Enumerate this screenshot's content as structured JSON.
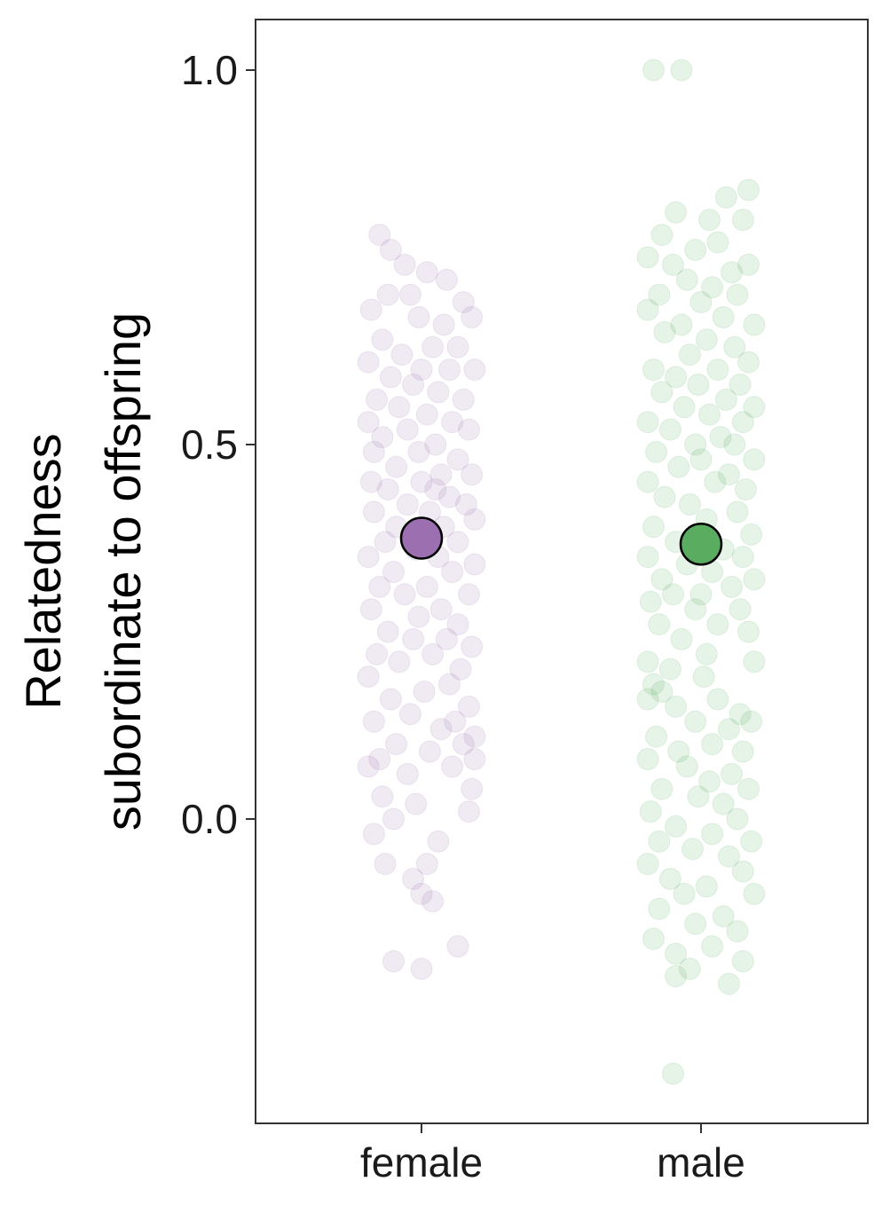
{
  "chart_data": {
    "type": "scatter",
    "subtype": "jitter-strip-with-mean",
    "ylabel_lines": [
      "Relatedness",
      "subordinate to offspring"
    ],
    "xlabel": "",
    "categories": [
      "female",
      "male"
    ],
    "yticks": [
      0.0,
      0.5,
      1.0
    ],
    "ytick_labels": [
      "0.0",
      "0.5",
      "1.0"
    ],
    "ylim": [
      -0.4,
      1.07
    ],
    "grid": false,
    "legend": "none",
    "point_alpha": 0.15,
    "series": [
      {
        "category": "female",
        "color": "#9c6fb0",
        "mean": 0.375,
        "points": [
          {
            "x": -0.15,
            "y": 0.78
          },
          {
            "x": -0.11,
            "y": 0.76
          },
          {
            "x": -0.06,
            "y": 0.74
          },
          {
            "x": 0.02,
            "y": 0.73
          },
          {
            "x": 0.09,
            "y": 0.72
          },
          {
            "x": -0.04,
            "y": 0.7
          },
          {
            "x": -0.12,
            "y": 0.7
          },
          {
            "x": 0.15,
            "y": 0.69
          },
          {
            "x": -0.18,
            "y": 0.68
          },
          {
            "x": -0.01,
            "y": 0.67
          },
          {
            "x": 0.08,
            "y": 0.66
          },
          {
            "x": 0.18,
            "y": 0.67
          },
          {
            "x": -0.14,
            "y": 0.64
          },
          {
            "x": 0.04,
            "y": 0.63
          },
          {
            "x": 0.13,
            "y": 0.63
          },
          {
            "x": -0.07,
            "y": 0.62
          },
          {
            "x": -0.19,
            "y": 0.61
          },
          {
            "x": 0.0,
            "y": 0.6
          },
          {
            "x": 0.1,
            "y": 0.6
          },
          {
            "x": 0.19,
            "y": 0.6
          },
          {
            "x": -0.11,
            "y": 0.59
          },
          {
            "x": -0.03,
            "y": 0.58
          },
          {
            "x": 0.06,
            "y": 0.57
          },
          {
            "x": -0.16,
            "y": 0.56
          },
          {
            "x": 0.15,
            "y": 0.56
          },
          {
            "x": -0.08,
            "y": 0.55
          },
          {
            "x": 0.02,
            "y": 0.54
          },
          {
            "x": -0.19,
            "y": 0.53
          },
          {
            "x": 0.11,
            "y": 0.53
          },
          {
            "x": -0.05,
            "y": 0.52
          },
          {
            "x": 0.17,
            "y": 0.52
          },
          {
            "x": -0.14,
            "y": 0.51
          },
          {
            "x": 0.05,
            "y": 0.5
          },
          {
            "x": -0.01,
            "y": 0.49
          },
          {
            "x": -0.17,
            "y": 0.49
          },
          {
            "x": 0.13,
            "y": 0.48
          },
          {
            "x": -0.09,
            "y": 0.47
          },
          {
            "x": 0.07,
            "y": 0.46
          },
          {
            "x": 0.18,
            "y": 0.46
          },
          {
            "x": -0.18,
            "y": 0.45
          },
          {
            "x": 0.0,
            "y": 0.45
          },
          {
            "x": 0.05,
            "y": 0.44
          },
          {
            "x": -0.12,
            "y": 0.44
          },
          {
            "x": 0.1,
            "y": 0.43
          },
          {
            "x": -0.05,
            "y": 0.42
          },
          {
            "x": 0.16,
            "y": 0.42
          },
          {
            "x": -0.17,
            "y": 0.41
          },
          {
            "x": 0.03,
            "y": 0.41
          },
          {
            "x": 0.19,
            "y": 0.4
          },
          {
            "x": -0.09,
            "y": 0.39
          },
          {
            "x": 0.08,
            "y": 0.39
          },
          {
            "x": -0.13,
            "y": 0.37
          },
          {
            "x": 0.13,
            "y": 0.37
          },
          {
            "x": -0.02,
            "y": 0.36
          },
          {
            "x": -0.19,
            "y": 0.35
          },
          {
            "x": 0.06,
            "y": 0.35
          },
          {
            "x": 0.19,
            "y": 0.34
          },
          {
            "x": -0.1,
            "y": 0.33
          },
          {
            "x": 0.11,
            "y": 0.33
          },
          {
            "x": -0.15,
            "y": 0.31
          },
          {
            "x": 0.02,
            "y": 0.31
          },
          {
            "x": -0.06,
            "y": 0.3
          },
          {
            "x": 0.17,
            "y": 0.3
          },
          {
            "x": -0.18,
            "y": 0.28
          },
          {
            "x": 0.07,
            "y": 0.28
          },
          {
            "x": -0.01,
            "y": 0.27
          },
          {
            "x": 0.13,
            "y": 0.26
          },
          {
            "x": -0.12,
            "y": 0.25
          },
          {
            "x": -0.03,
            "y": 0.24
          },
          {
            "x": 0.09,
            "y": 0.24
          },
          {
            "x": 0.18,
            "y": 0.23
          },
          {
            "x": -0.16,
            "y": 0.22
          },
          {
            "x": 0.04,
            "y": 0.22
          },
          {
            "x": -0.08,
            "y": 0.21
          },
          {
            "x": 0.14,
            "y": 0.2
          },
          {
            "x": -0.19,
            "y": 0.19
          },
          {
            "x": 0.1,
            "y": 0.18
          },
          {
            "x": 0.01,
            "y": 0.17
          },
          {
            "x": -0.11,
            "y": 0.16
          },
          {
            "x": 0.17,
            "y": 0.15
          },
          {
            "x": -0.04,
            "y": 0.14
          },
          {
            "x": 0.12,
            "y": 0.13
          },
          {
            "x": -0.17,
            "y": 0.13
          },
          {
            "x": 0.07,
            "y": 0.12
          },
          {
            "x": 0.19,
            "y": 0.11
          },
          {
            "x": -0.09,
            "y": 0.1
          },
          {
            "x": 0.15,
            "y": 0.1
          },
          {
            "x": 0.03,
            "y": 0.09
          },
          {
            "x": -0.15,
            "y": 0.08
          },
          {
            "x": 0.19,
            "y": 0.08
          },
          {
            "x": -0.19,
            "y": 0.07
          },
          {
            "x": 0.11,
            "y": 0.07
          },
          {
            "x": -0.05,
            "y": 0.06
          },
          {
            "x": 0.18,
            "y": 0.04
          },
          {
            "x": -0.14,
            "y": 0.03
          },
          {
            "x": -0.02,
            "y": 0.02
          },
          {
            "x": 0.17,
            "y": 0.01
          },
          {
            "x": -0.1,
            "y": 0.0
          },
          {
            "x": -0.17,
            "y": -0.02
          },
          {
            "x": 0.06,
            "y": -0.03
          },
          {
            "x": 0.02,
            "y": -0.06
          },
          {
            "x": -0.13,
            "y": -0.06
          },
          {
            "x": -0.03,
            "y": -0.08
          },
          {
            "x": 0.0,
            "y": -0.1
          },
          {
            "x": 0.04,
            "y": -0.11
          },
          {
            "x": 0.13,
            "y": -0.17
          },
          {
            "x": -0.1,
            "y": -0.19
          },
          {
            "x": 0.0,
            "y": -0.2
          }
        ]
      },
      {
        "category": "male",
        "color": "#5aad60",
        "mean": 0.367,
        "points": [
          {
            "x": -0.17,
            "y": 1.0
          },
          {
            "x": -0.07,
            "y": 1.0
          },
          {
            "x": 0.17,
            "y": 0.84
          },
          {
            "x": 0.09,
            "y": 0.83
          },
          {
            "x": -0.09,
            "y": 0.81
          },
          {
            "x": 0.03,
            "y": 0.8
          },
          {
            "x": 0.15,
            "y": 0.8
          },
          {
            "x": -0.14,
            "y": 0.78
          },
          {
            "x": 0.06,
            "y": 0.77
          },
          {
            "x": -0.02,
            "y": 0.76
          },
          {
            "x": -0.19,
            "y": 0.75
          },
          {
            "x": 0.17,
            "y": 0.74
          },
          {
            "x": -0.1,
            "y": 0.74
          },
          {
            "x": 0.11,
            "y": 0.73
          },
          {
            "x": -0.05,
            "y": 0.72
          },
          {
            "x": 0.04,
            "y": 0.71
          },
          {
            "x": -0.15,
            "y": 0.7
          },
          {
            "x": 0.13,
            "y": 0.7
          },
          {
            "x": 0.0,
            "y": 0.69
          },
          {
            "x": -0.19,
            "y": 0.68
          },
          {
            "x": 0.08,
            "y": 0.67
          },
          {
            "x": -0.07,
            "y": 0.66
          },
          {
            "x": 0.19,
            "y": 0.66
          },
          {
            "x": -0.13,
            "y": 0.65
          },
          {
            "x": 0.02,
            "y": 0.64
          },
          {
            "x": 0.12,
            "y": 0.63
          },
          {
            "x": -0.04,
            "y": 0.62
          },
          {
            "x": 0.17,
            "y": 0.61
          },
          {
            "x": -0.17,
            "y": 0.6
          },
          {
            "x": 0.06,
            "y": 0.6
          },
          {
            "x": -0.09,
            "y": 0.59
          },
          {
            "x": 0.14,
            "y": 0.58
          },
          {
            "x": -0.01,
            "y": 0.58
          },
          {
            "x": -0.14,
            "y": 0.57
          },
          {
            "x": 0.09,
            "y": 0.56
          },
          {
            "x": 0.19,
            "y": 0.55
          },
          {
            "x": -0.06,
            "y": 0.55
          },
          {
            "x": 0.03,
            "y": 0.54
          },
          {
            "x": -0.19,
            "y": 0.53
          },
          {
            "x": 0.15,
            "y": 0.53
          },
          {
            "x": -0.11,
            "y": 0.52
          },
          {
            "x": 0.07,
            "y": 0.51
          },
          {
            "x": -0.02,
            "y": 0.5
          },
          {
            "x": 0.12,
            "y": 0.5
          },
          {
            "x": -0.16,
            "y": 0.49
          },
          {
            "x": 0.19,
            "y": 0.48
          },
          {
            "x": 0.0,
            "y": 0.48
          },
          {
            "x": -0.08,
            "y": 0.47
          },
          {
            "x": 0.1,
            "y": 0.46
          },
          {
            "x": -0.19,
            "y": 0.45
          },
          {
            "x": 0.05,
            "y": 0.45
          },
          {
            "x": 0.16,
            "y": 0.44
          },
          {
            "x": -0.13,
            "y": 0.43
          },
          {
            "x": -0.04,
            "y": 0.42
          },
          {
            "x": 0.13,
            "y": 0.41
          },
          {
            "x": 0.02,
            "y": 0.4
          },
          {
            "x": -0.17,
            "y": 0.39
          },
          {
            "x": 0.18,
            "y": 0.38
          },
          {
            "x": -0.09,
            "y": 0.37
          },
          {
            "x": 0.08,
            "y": 0.36
          },
          {
            "x": -0.19,
            "y": 0.35
          },
          {
            "x": 0.15,
            "y": 0.35
          },
          {
            "x": -0.05,
            "y": 0.34
          },
          {
            "x": 0.04,
            "y": 0.33
          },
          {
            "x": -0.14,
            "y": 0.32
          },
          {
            "x": 0.19,
            "y": 0.32
          },
          {
            "x": 0.11,
            "y": 0.31
          },
          {
            "x": -0.1,
            "y": 0.3
          },
          {
            "x": 0.0,
            "y": 0.3
          },
          {
            "x": -0.18,
            "y": 0.29
          },
          {
            "x": 0.14,
            "y": 0.28
          },
          {
            "x": -0.02,
            "y": 0.28
          },
          {
            "x": 0.06,
            "y": 0.26
          },
          {
            "x": -0.15,
            "y": 0.26
          },
          {
            "x": 0.17,
            "y": 0.25
          },
          {
            "x": -0.07,
            "y": 0.24
          },
          {
            "x": 0.02,
            "y": 0.22
          },
          {
            "x": -0.19,
            "y": 0.21
          },
          {
            "x": 0.19,
            "y": 0.21
          },
          {
            "x": -0.11,
            "y": 0.2
          },
          {
            "x": 0.01,
            "y": 0.19
          },
          {
            "x": -0.17,
            "y": 0.18
          },
          {
            "x": -0.14,
            "y": 0.17
          },
          {
            "x": -0.19,
            "y": 0.16
          },
          {
            "x": 0.06,
            "y": 0.16
          },
          {
            "x": -0.09,
            "y": 0.15
          },
          {
            "x": 0.14,
            "y": 0.14
          },
          {
            "x": -0.02,
            "y": 0.13
          },
          {
            "x": 0.18,
            "y": 0.13
          },
          {
            "x": 0.1,
            "y": 0.12
          },
          {
            "x": -0.16,
            "y": 0.11
          },
          {
            "x": 0.04,
            "y": 0.1
          },
          {
            "x": -0.08,
            "y": 0.09
          },
          {
            "x": 0.15,
            "y": 0.09
          },
          {
            "x": -0.19,
            "y": 0.08
          },
          {
            "x": -0.05,
            "y": 0.07
          },
          {
            "x": 0.11,
            "y": 0.06
          },
          {
            "x": 0.03,
            "y": 0.05
          },
          {
            "x": -0.14,
            "y": 0.04
          },
          {
            "x": 0.17,
            "y": 0.04
          },
          {
            "x": -0.01,
            "y": 0.03
          },
          {
            "x": 0.08,
            "y": 0.02
          },
          {
            "x": -0.18,
            "y": 0.01
          },
          {
            "x": 0.13,
            "y": 0.0
          },
          {
            "x": -0.09,
            "y": -0.01
          },
          {
            "x": 0.04,
            "y": -0.02
          },
          {
            "x": -0.15,
            "y": -0.03
          },
          {
            "x": 0.18,
            "y": -0.03
          },
          {
            "x": -0.03,
            "y": -0.04
          },
          {
            "x": 0.1,
            "y": -0.05
          },
          {
            "x": -0.19,
            "y": -0.06
          },
          {
            "x": 0.15,
            "y": -0.07
          },
          {
            "x": -0.11,
            "y": -0.08
          },
          {
            "x": 0.02,
            "y": -0.09
          },
          {
            "x": -0.06,
            "y": -0.1
          },
          {
            "x": 0.19,
            "y": -0.1
          },
          {
            "x": -0.15,
            "y": -0.12
          },
          {
            "x": 0.08,
            "y": -0.13
          },
          {
            "x": -0.02,
            "y": -0.14
          },
          {
            "x": 0.13,
            "y": -0.15
          },
          {
            "x": -0.17,
            "y": -0.16
          },
          {
            "x": 0.04,
            "y": -0.17
          },
          {
            "x": -0.09,
            "y": -0.18
          },
          {
            "x": 0.15,
            "y": -0.19
          },
          {
            "x": -0.04,
            "y": -0.2
          },
          {
            "x": -0.09,
            "y": -0.21
          },
          {
            "x": 0.1,
            "y": -0.22
          },
          {
            "x": -0.1,
            "y": -0.34
          }
        ]
      }
    ]
  }
}
